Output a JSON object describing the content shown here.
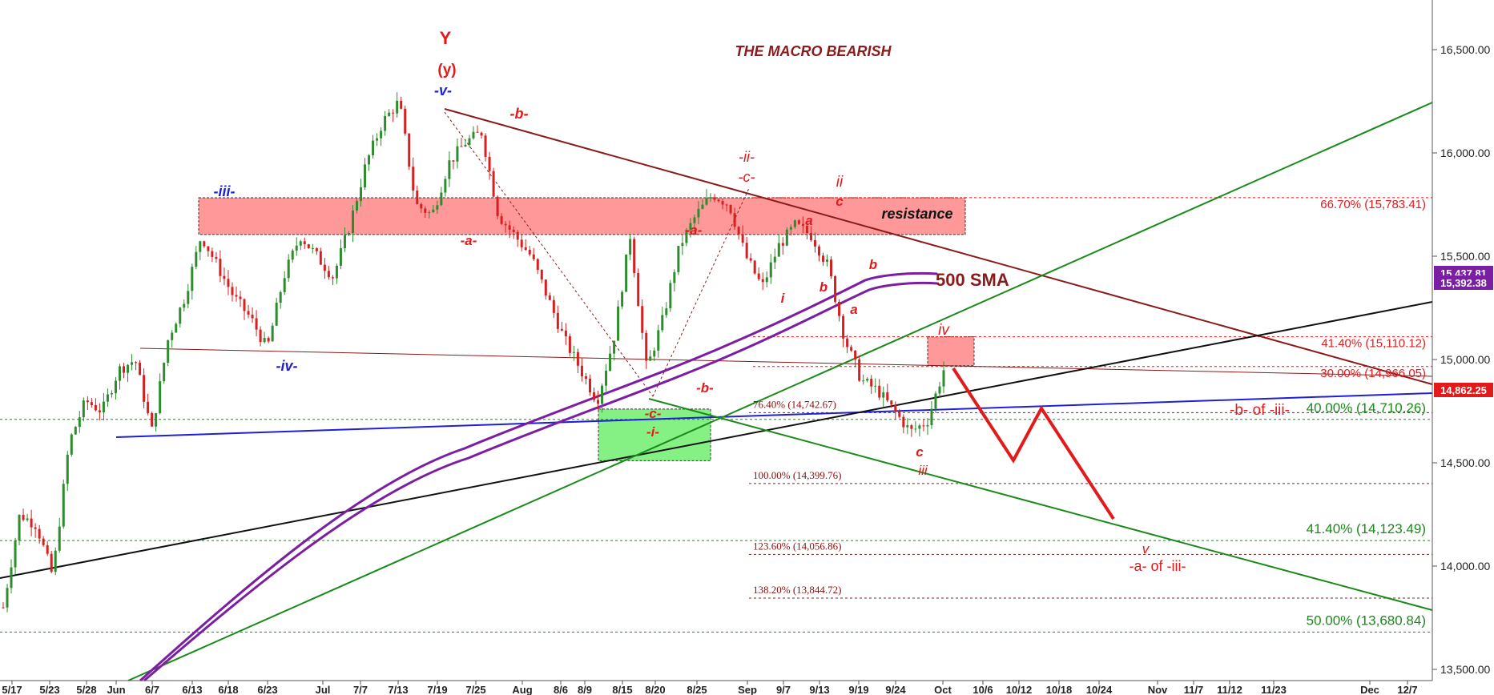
{
  "chart_data": {
    "type": "candlestick",
    "title": "THE MACRO BEARISH",
    "ylim": [
      13440,
      16710
    ],
    "y_ticks": [
      "16,500.00",
      "16,000.00",
      "15,500.00",
      "15,000.00",
      "14,500.00",
      "14,000.00",
      "13,500.00"
    ],
    "y_tick_values": [
      16500,
      16000,
      15500,
      15000,
      14500,
      14000,
      13500
    ],
    "x_ticks": [
      "5/17",
      "5/23",
      "5/28",
      "Jun",
      "6/7",
      "6/13",
      "6/18",
      "6/23",
      "Jul",
      "7/7",
      "7/13",
      "7/19",
      "7/25",
      "Aug",
      "8/6",
      "8/9",
      "8/15",
      "8/20",
      "8/25",
      "Sep",
      "9/7",
      "9/13",
      "9/19",
      "9/24",
      "Oct",
      "10/6",
      "10/12",
      "10/18",
      "10/24",
      "Nov",
      "11/7",
      "11/12",
      "11/23",
      "Dec",
      "12/7"
    ],
    "price_tags": [
      {
        "text": "15,437.81",
        "value": 15437.81,
        "color": "#7b1fa2"
      },
      {
        "text": "15,392.38",
        "value": 15392.38,
        "color": "#7b1fa2"
      },
      {
        "text": "14,862.25",
        "value": 14862.25,
        "color": "#e31a1c"
      }
    ],
    "wave_labels_blue": [
      "-v-",
      "-iii-",
      "-iv-"
    ],
    "wave_labels_red": [
      "Y",
      "(y)",
      "-b-",
      "-a-",
      "-ii-",
      "-c-",
      "ii",
      "c",
      "-a-",
      "a",
      "b",
      "b",
      "i",
      "a",
      "-b-",
      "-c-",
      "-i-",
      "iv",
      "c",
      "iii",
      "v",
      "-a- of -iii-",
      "-b- of -iii-"
    ],
    "annotations": {
      "resistance": "resistance",
      "sma": "500 SMA"
    },
    "fib_levels_red": [
      {
        "text": "66.70% (15,783.41)",
        "value": 15783.41
      },
      {
        "text": "41.40% (15,110.12)",
        "value": 15110.12
      },
      {
        "text": "30.00% (14,966.05)",
        "value": 14966.05
      }
    ],
    "fib_levels_dark": [
      {
        "text": "76.40% (14,742.67)",
        "value": 14742.67
      },
      {
        "text": "100.00% (14,399.76)",
        "value": 14399.76
      },
      {
        "text": "123.60% (14,056.86)",
        "value": 14056.86
      },
      {
        "text": "138.20% (13,844.72)",
        "value": 13844.72
      }
    ],
    "fib_levels_green": [
      {
        "text": "40.00% (14,710.26)",
        "value": 14710.26
      },
      {
        "text": "41.40% (14,123.49)",
        "value": 14123.49
      },
      {
        "text": "50.00% (13,680.84)",
        "value": 13680.84
      }
    ],
    "zones": [
      {
        "name": "resistance",
        "y_top": 15783,
        "y_bottom": 15605,
        "color": "#ff8080"
      },
      {
        "name": "support",
        "y_top": 14760,
        "y_bottom": 14510,
        "color": "#66ee66"
      },
      {
        "name": "wave-iv",
        "y_top": 15110,
        "y_bottom": 14970,
        "color": "#ff8080"
      }
    ],
    "projection": [
      15000,
      14520,
      14760,
      14210
    ],
    "price_path": [
      13800,
      14250,
      14200,
      13950,
      14600,
      14800,
      14750,
      14950,
      15000,
      14650,
      15100,
      15300,
      15600,
      15450,
      15300,
      15200,
      15050,
      15400,
      15600,
      15500,
      15400,
      15650,
      15950,
      16150,
      16250,
      15750,
      15700,
      15950,
      16050,
      16100,
      15700,
      15600,
      15500,
      15300,
      15100,
      14950,
      14800,
      15100,
      15600,
      14950,
      15200,
      15550,
      15700,
      15800,
      15750,
      15500,
      15350,
      15550,
      15650,
      15600,
      15450,
      15100,
      14900,
      14850,
      14750,
      14650,
      14700,
      14950
    ]
  }
}
